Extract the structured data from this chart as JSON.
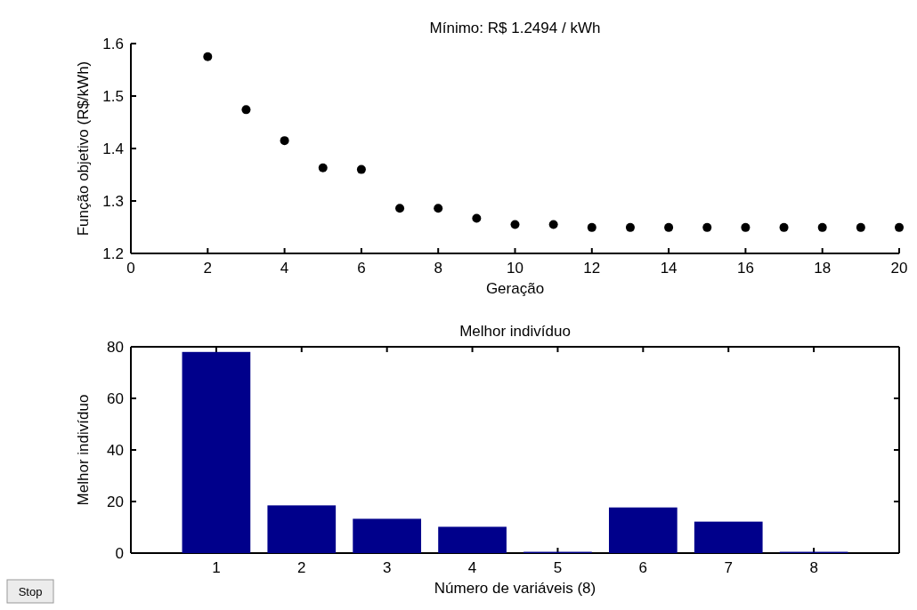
{
  "chart_data": [
    {
      "type": "scatter",
      "title": "Mínimo: R$ 1.2494 / kWh",
      "xlabel": "Geração",
      "ylabel": "Função objetivo (R$/kWh)",
      "x": [
        2,
        3,
        4,
        5,
        6,
        7,
        8,
        9,
        10,
        11,
        12,
        13,
        14,
        15,
        16,
        17,
        18,
        19,
        20
      ],
      "series": [
        {
          "color": "#000000",
          "values": [
            1.575,
            1.474,
            1.415,
            1.363,
            1.36,
            1.286,
            1.286,
            1.267,
            1.255,
            1.255,
            1.2494,
            1.2494,
            1.2494,
            1.2494,
            1.2494,
            1.2494,
            1.2494,
            1.2494,
            1.2494
          ]
        }
      ],
      "marker": "circle",
      "xlim": [
        0,
        20
      ],
      "xticks": [
        0,
        2,
        4,
        6,
        8,
        10,
        12,
        14,
        16,
        18,
        20
      ],
      "ylim": [
        1.2,
        1.6
      ],
      "yticks": [
        1.2,
        1.3,
        1.4,
        1.5,
        1.6
      ],
      "grid": false
    },
    {
      "type": "bar",
      "title": "Melhor indivíduo",
      "xlabel": "Número de variáveis (8)",
      "ylabel": "Melhor indivíduo",
      "categories": [
        "1",
        "2",
        "3",
        "4",
        "5",
        "6",
        "7",
        "8"
      ],
      "series": [
        {
          "color": "#00008b",
          "values": [
            78,
            18.5,
            13.3,
            10.2,
            0.5,
            17.7,
            12.2,
            0.5
          ]
        }
      ],
      "ylim": [
        0,
        80
      ],
      "yticks": [
        0,
        20,
        40,
        60,
        80
      ],
      "grid": false,
      "annotations": [
        "Stop"
      ]
    }
  ]
}
